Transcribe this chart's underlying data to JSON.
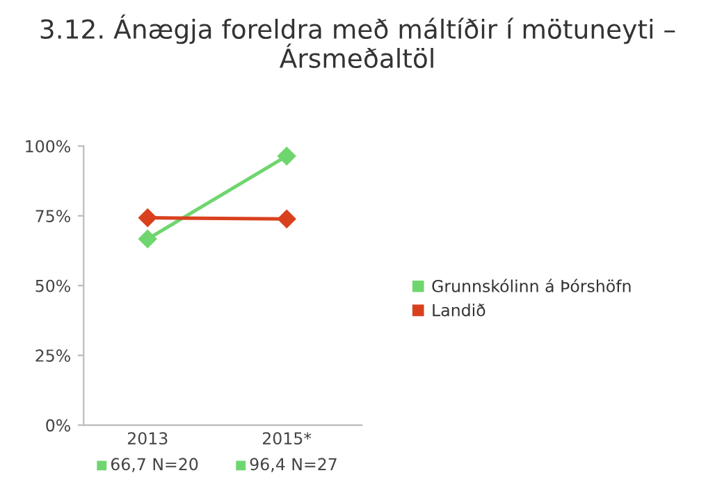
{
  "chart_data": {
    "type": "line",
    "title": "3.12. Ánægja foreldra með máltíðir í mötuneyti – Ársmeðaltöl",
    "categories": [
      "2013",
      "2015*"
    ],
    "series": [
      {
        "name": "Grunnskólinn á Þórshöfn",
        "color": "#6fd66f",
        "values": [
          66.7,
          96.4
        ],
        "value_labels": [
          "66,7 N=20",
          "96,4 N=27"
        ]
      },
      {
        "name": "Landið",
        "color": "#d9411e",
        "values": [
          74.3,
          73.9
        ]
      }
    ],
    "ylim": [
      0,
      100
    ],
    "yticks": [
      {
        "value": 0,
        "label": "0%"
      },
      {
        "value": 25,
        "label": "25%"
      },
      {
        "value": 50,
        "label": "50%"
      },
      {
        "value": 75,
        "label": "75%"
      },
      {
        "value": 100,
        "label": "100%"
      }
    ],
    "grid": false,
    "legend": "right",
    "marker": "diamond",
    "line_style": "solid"
  }
}
